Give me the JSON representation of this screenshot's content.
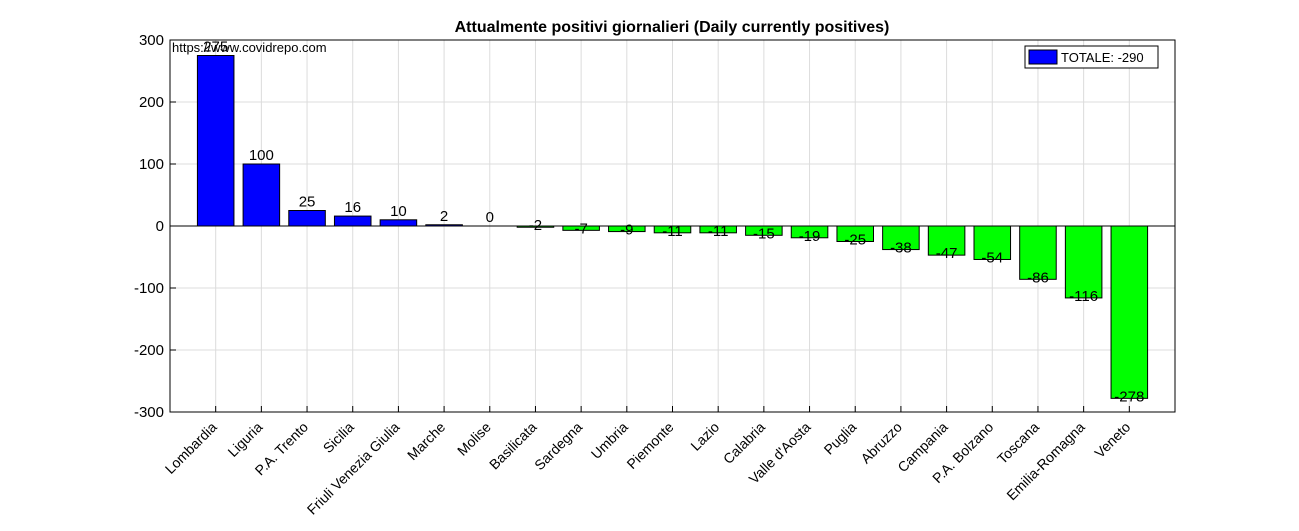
{
  "chart_data": {
    "type": "bar",
    "title": "Attualmente positivi giornalieri (Daily currently positives)",
    "annotation": "https://www.covidrepo.com",
    "categories": [
      "Lombardia",
      "Liguria",
      "P.A. Trento",
      "Sicilia",
      "Friuli Venezia Giulia",
      "Marche",
      "Molise",
      "Basilicata",
      "Sardegna",
      "Umbria",
      "Piemonte",
      "Lazio",
      "Calabria",
      "Valle d'Aosta",
      "Puglia",
      "Abruzzo",
      "Campania",
      "P.A. Bolzano",
      "Toscana",
      "Emilia-Romagna",
      "Veneto"
    ],
    "values": [
      275,
      100,
      25,
      16,
      10,
      2,
      0,
      -2,
      -7,
      -9,
      -11,
      -11,
      -15,
      -19,
      -25,
      -38,
      -47,
      -54,
      -86,
      -116,
      -278
    ],
    "data_labels": [
      "275",
      "100",
      "25",
      "16",
      "10",
      "2",
      "0",
      "-2",
      "-7",
      "-9",
      "-11",
      "-11",
      "-15",
      "-19",
      "-25",
      "-38",
      "-47",
      "-54",
      "-86",
      "-116",
      "-278"
    ],
    "positive_color": "#0000ff",
    "negative_color": "#00ff00",
    "ylim": [
      -300,
      300
    ],
    "yticks": [
      300,
      200,
      100,
      0,
      -100,
      -200,
      -300
    ],
    "ytick_labels": [
      "300",
      "200",
      "100",
      "0",
      "-100",
      "-200",
      "-300"
    ],
    "grid": true,
    "legend": {
      "position": "top-right",
      "entries": [
        {
          "label": "TOTALE: -290",
          "color": "#0000ff"
        }
      ]
    }
  }
}
